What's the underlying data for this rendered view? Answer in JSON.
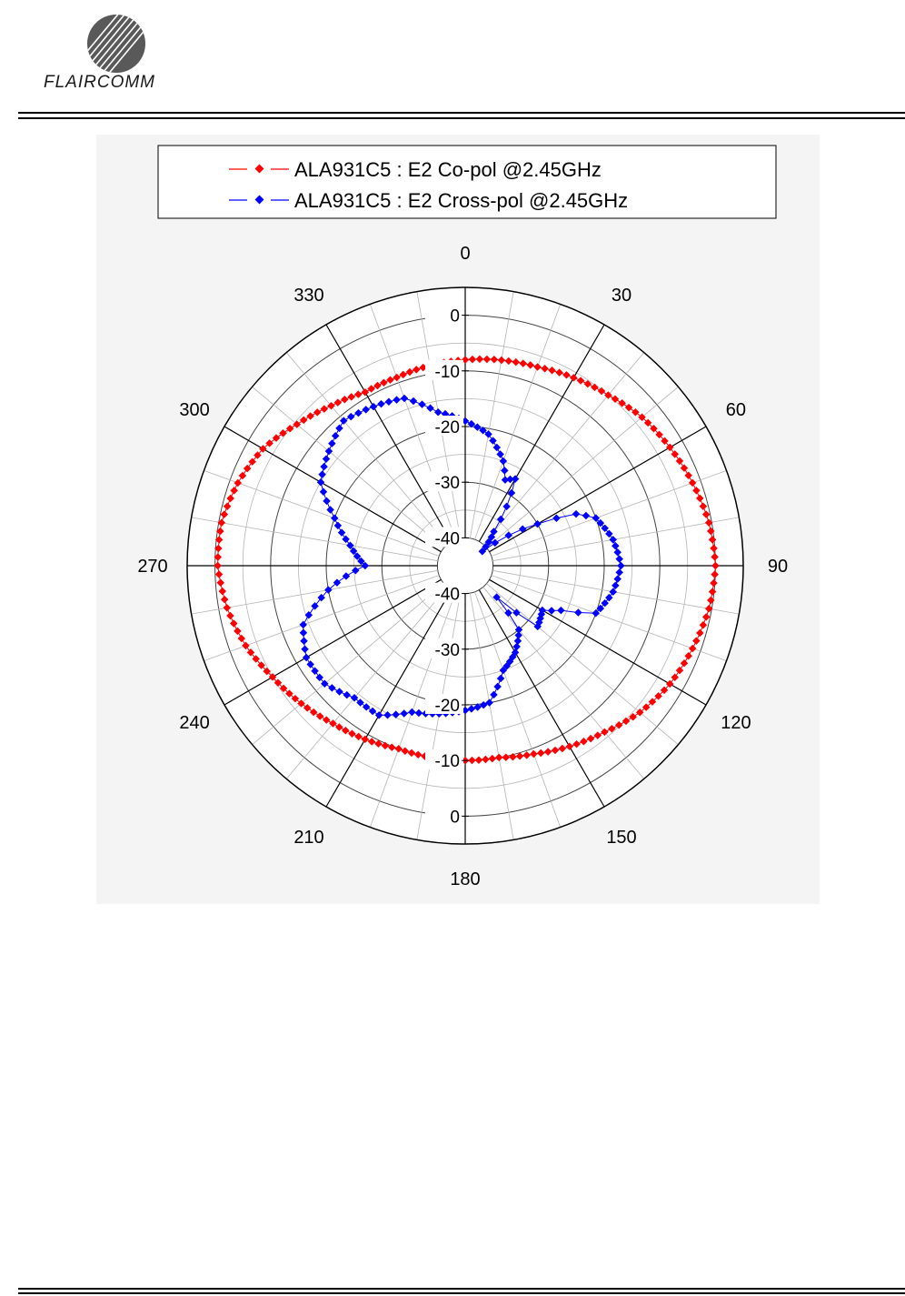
{
  "header": {
    "brand": "FLAIRCOMM",
    "logo_icon": "flaircomm-sphere-logo"
  },
  "chart_data": {
    "type": "polar",
    "legend_position": "top",
    "angle_ticks": [
      "0",
      "30",
      "60",
      "90",
      "120",
      "150",
      "180",
      "210",
      "240",
      "270",
      "300",
      "330"
    ],
    "radial_ticks_top": [
      "0",
      "-10",
      "-20",
      "-30",
      "-40"
    ],
    "radial_ticks_bottom": [
      "-40",
      "-30",
      "-20",
      "-10",
      "0"
    ],
    "r_range": [
      -45,
      5
    ],
    "grid": true,
    "colors": {
      "co_pol": "#ff0000",
      "cross_pol": "#0000ff"
    },
    "series": [
      {
        "name": "ALA931C5 : E2 Co-pol @2.45GHz",
        "color": "#ff0000",
        "angles": [
          0,
          10,
          20,
          30,
          40,
          50,
          60,
          70,
          80,
          90,
          100,
          110,
          120,
          130,
          140,
          150,
          160,
          170,
          180,
          190,
          200,
          210,
          220,
          230,
          240,
          250,
          260,
          270,
          280,
          290,
          300,
          310,
          320,
          330,
          340,
          350
        ],
        "values": [
          -8,
          -7.5,
          -7,
          -6,
          -5,
          -3.5,
          -2.5,
          -1.5,
          -0.5,
          0,
          -0.5,
          -1.5,
          -2.5,
          -4,
          -6,
          -7.5,
          -9,
          -10,
          -10,
          -10,
          -10,
          -9,
          -8,
          -6.5,
          -5,
          -3,
          -1.5,
          -0.5,
          -0.5,
          -1.5,
          -3,
          -5.5,
          -7.5,
          -9,
          -9,
          -8.5
        ]
      },
      {
        "name": "ALA931C5 : E2 Cross-pol @2.45GHz",
        "color": "#0000ff",
        "angles": [
          0,
          10,
          20,
          25,
          30,
          35,
          40,
          50,
          60,
          65,
          70,
          80,
          90,
          100,
          110,
          115,
          120,
          130,
          135,
          140,
          150,
          160,
          170,
          180,
          190,
          200,
          210,
          220,
          230,
          240,
          250,
          260,
          270,
          280,
          290,
          300,
          310,
          320,
          330,
          340,
          350
        ],
        "values": [
          -19,
          -21,
          -25,
          -28,
          -27,
          -32,
          -37,
          -41,
          -30,
          -23,
          -20,
          -18,
          -17,
          -18,
          -20,
          -26,
          -29,
          -28,
          -37,
          -30,
          -27,
          -25,
          -20,
          -19,
          -18,
          -17,
          -14,
          -14,
          -12,
          -12,
          -14,
          -20,
          -27,
          -24,
          -20,
          -15,
          -13,
          -11,
          -12,
          -13,
          -17
        ]
      }
    ]
  }
}
